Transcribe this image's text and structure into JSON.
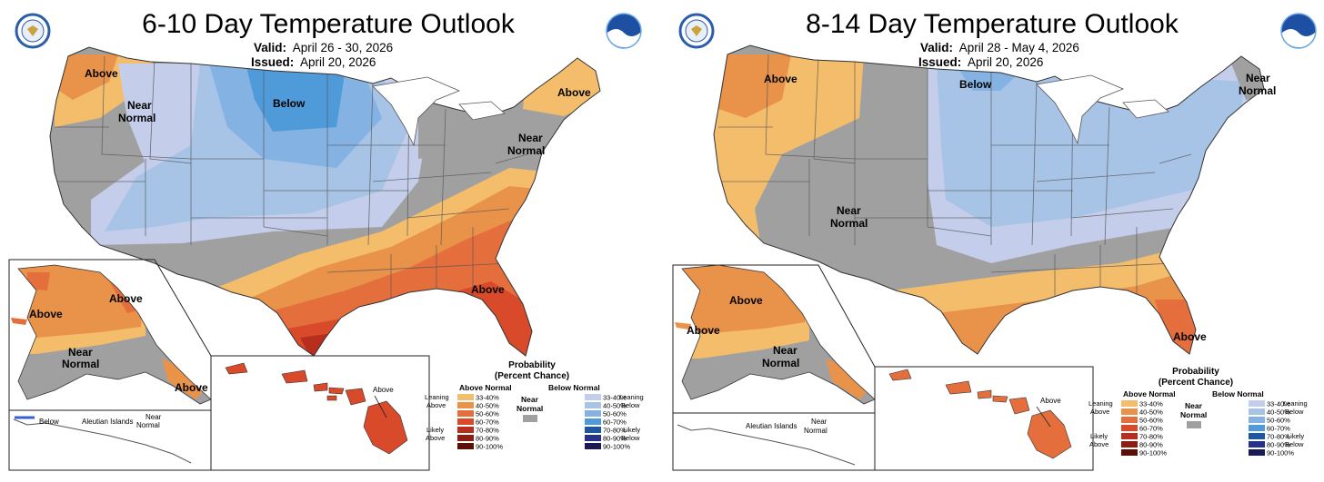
{
  "panels": [
    {
      "title": "6-10 Day Temperature Outlook",
      "valid_label": "Valid:",
      "valid_value": "April 26 - 30, 2026",
      "issued_label": "Issued:",
      "issued_value": "April 20, 2026",
      "map_labels": {
        "above_nw": "Above",
        "near_nw_1": "Near",
        "near_nw_2": "Normal",
        "below_north": "Below",
        "above_ne": "Above",
        "near_ne_1": "Near",
        "near_ne_2": "Normal",
        "above_se": "Above",
        "ak_above_n": "Above",
        "ak_above_w": "Above",
        "ak_near_1": "Near",
        "ak_near_2": "Normal",
        "ak_above_se": "Above",
        "ak_below": "Below",
        "aleutian": "Aleutian Islands",
        "ak_near_s1": "Near",
        "ak_near_s2": "Normal",
        "hi_above": "Above"
      }
    },
    {
      "title": "8-14 Day Temperature Outlook",
      "valid_label": "Valid:",
      "valid_value": "April 28 - May 4, 2026",
      "issued_label": "Issued:",
      "issued_value": "April 20, 2026",
      "map_labels": {
        "above_nw": "Above",
        "below_north": "Below",
        "near_ne_1": "Near",
        "near_ne_2": "Normal",
        "near_c_1": "Near",
        "near_c_2": "Normal",
        "above_fl": "Above",
        "ak_above_n": "Above",
        "ak_above_w": "Above",
        "ak_near_1": "Near",
        "ak_near_2": "Normal",
        "aleutian": "Aleutian Islands",
        "ak_near_s1": "Near",
        "ak_near_s2": "Normal",
        "hi_above": "Above"
      }
    }
  ],
  "legend": {
    "title_1": "Probability",
    "title_2": "(Percent Chance)",
    "above_header": "Above Normal",
    "below_header": "Below Normal",
    "near_1": "Near",
    "near_2": "Normal",
    "leaning_above_1": "Leaning",
    "leaning_above_2": "Above",
    "likely_above_1": "Likely",
    "likely_above_2": "Above",
    "leaning_below_1": "Leaning",
    "leaning_below_2": "Below",
    "likely_below_1": "Likely",
    "likely_below_2": "Below",
    "ranges": [
      "33-40%",
      "40-50%",
      "50-60%",
      "60-70%",
      "70-80%",
      "80-90%",
      "90-100%"
    ],
    "above_colors": [
      "#f3bd6c",
      "#e9924a",
      "#e46f3d",
      "#d84a2a",
      "#b72f1c",
      "#8c1d10",
      "#5b0f07"
    ],
    "below_colors": [
      "#c4cde9",
      "#a7c3e6",
      "#84b3e3",
      "#4f9ad9",
      "#1d57a3",
      "#25318a",
      "#1b1a55"
    ],
    "near_color": "#a0a0a0"
  }
}
